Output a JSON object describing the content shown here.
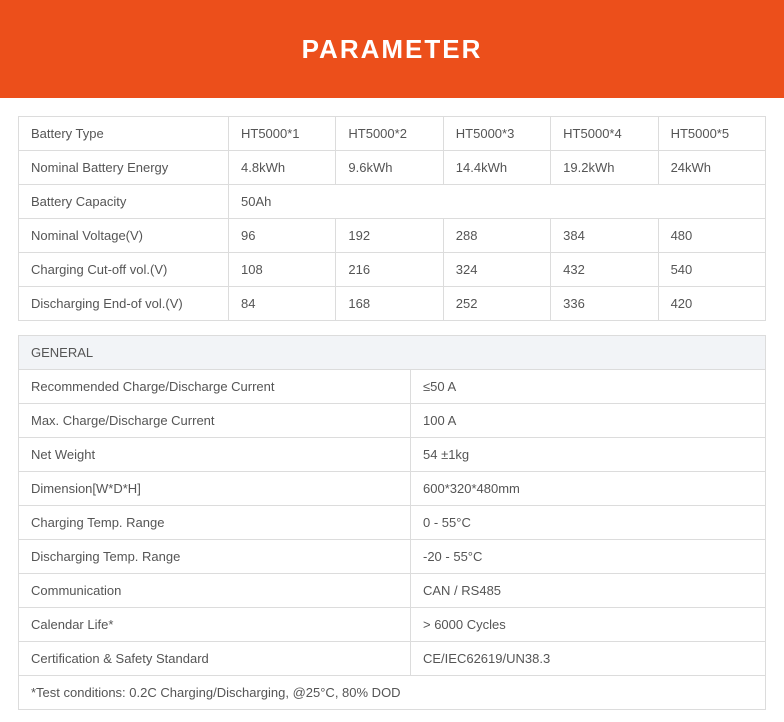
{
  "header": {
    "title": "PARAMETER",
    "bg_color": "#ec4f1b",
    "title_color": "#ffffff",
    "title_fontsize": 26
  },
  "spec_table": {
    "border_color": "#dcdcdc",
    "text_color": "#555555",
    "rows": [
      {
        "label": "Battery Type",
        "cells": [
          "HT5000*1",
          "HT5000*2",
          "HT5000*3",
          "HT5000*4",
          "HT5000*5"
        ]
      },
      {
        "label": "Nominal Battery Energy",
        "cells": [
          "4.8kWh",
          "9.6kWh",
          "14.4kWh",
          "19.2kWh",
          "24kWh"
        ]
      },
      {
        "label": "Battery Capacity",
        "merged": "50Ah"
      },
      {
        "label": "Nominal Voltage(V)",
        "cells": [
          "96",
          "192",
          "288",
          "384",
          "480"
        ]
      },
      {
        "label": "Charging Cut-off vol.(V)",
        "cells": [
          "108",
          "216",
          "324",
          "432",
          "540"
        ]
      },
      {
        "label": "Discharging End-of vol.(V)",
        "cells": [
          "84",
          "168",
          "252",
          "336",
          "420"
        ]
      }
    ]
  },
  "general_table": {
    "section_title": "GENERAL",
    "section_bg": "#f2f4f7",
    "rows": [
      {
        "label": "Recommended Charge/Discharge Current",
        "value": "≤50 A"
      },
      {
        "label": "Max. Charge/Discharge Current",
        "value": "100 A"
      },
      {
        "label": "Net Weight",
        "value": "54 ±1kg"
      },
      {
        "label": "Dimension[W*D*H]",
        "value": "600*320*480mm"
      },
      {
        "label": "Charging Temp. Range",
        "value": "0 - 55°C"
      },
      {
        "label": "Discharging Temp. Range",
        "value": "-20 - 55°C"
      },
      {
        "label": "Communication",
        "value": "CAN / RS485"
      },
      {
        "label": "Calendar Life*",
        "value": "> 6000 Cycles"
      },
      {
        "label": "Certification & Safety Standard",
        "value": "CE/IEC62619/UN38.3"
      }
    ],
    "footnote": "*Test conditions: 0.2C Charging/Discharging, @25°C, 80% DOD"
  }
}
